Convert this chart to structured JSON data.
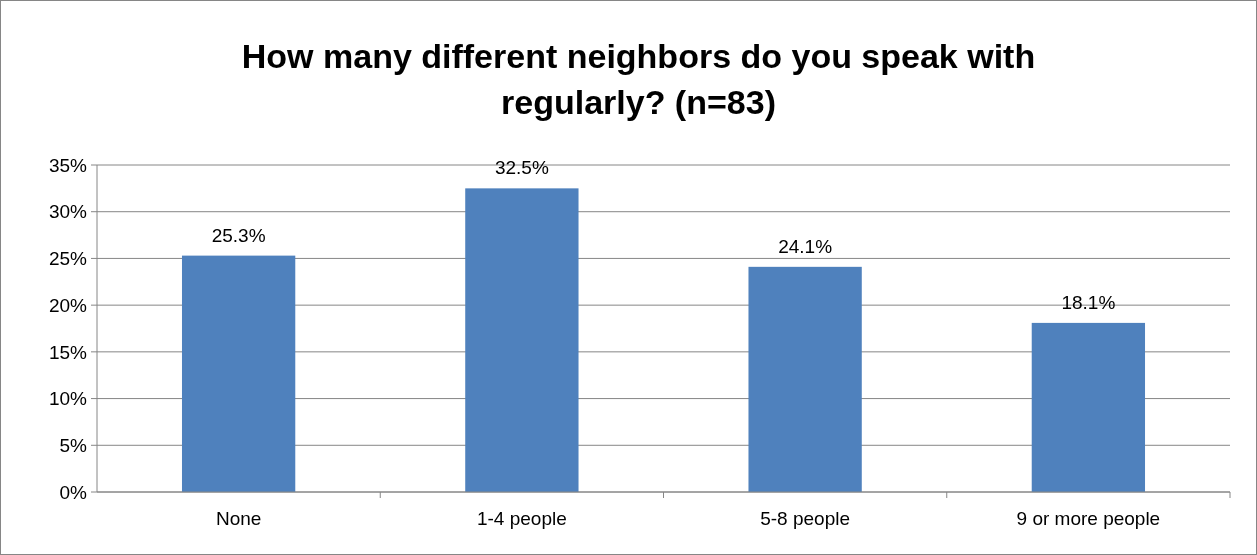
{
  "chart_data": {
    "type": "bar",
    "title": "How many different neighbors do you speak with regularly? (n=83)",
    "categories": [
      "None",
      "1-4 people",
      "5-8 people",
      "9 or more people"
    ],
    "values": [
      25.3,
      32.5,
      24.1,
      18.1
    ],
    "value_labels": [
      "25.3%",
      "32.5%",
      "24.1%",
      "18.1%"
    ],
    "color": "#4f81bd",
    "ylim": [
      0,
      35
    ],
    "yticks": [
      {
        "value": 0,
        "label": "0%"
      },
      {
        "value": 5,
        "label": "5%"
      },
      {
        "value": 10,
        "label": "10%"
      },
      {
        "value": 15,
        "label": "15%"
      },
      {
        "value": 20,
        "label": "20%"
      },
      {
        "value": 25,
        "label": "25%"
      },
      {
        "value": 30,
        "label": "30%"
      },
      {
        "value": 35,
        "label": "35%"
      }
    ],
    "grid": "y"
  }
}
